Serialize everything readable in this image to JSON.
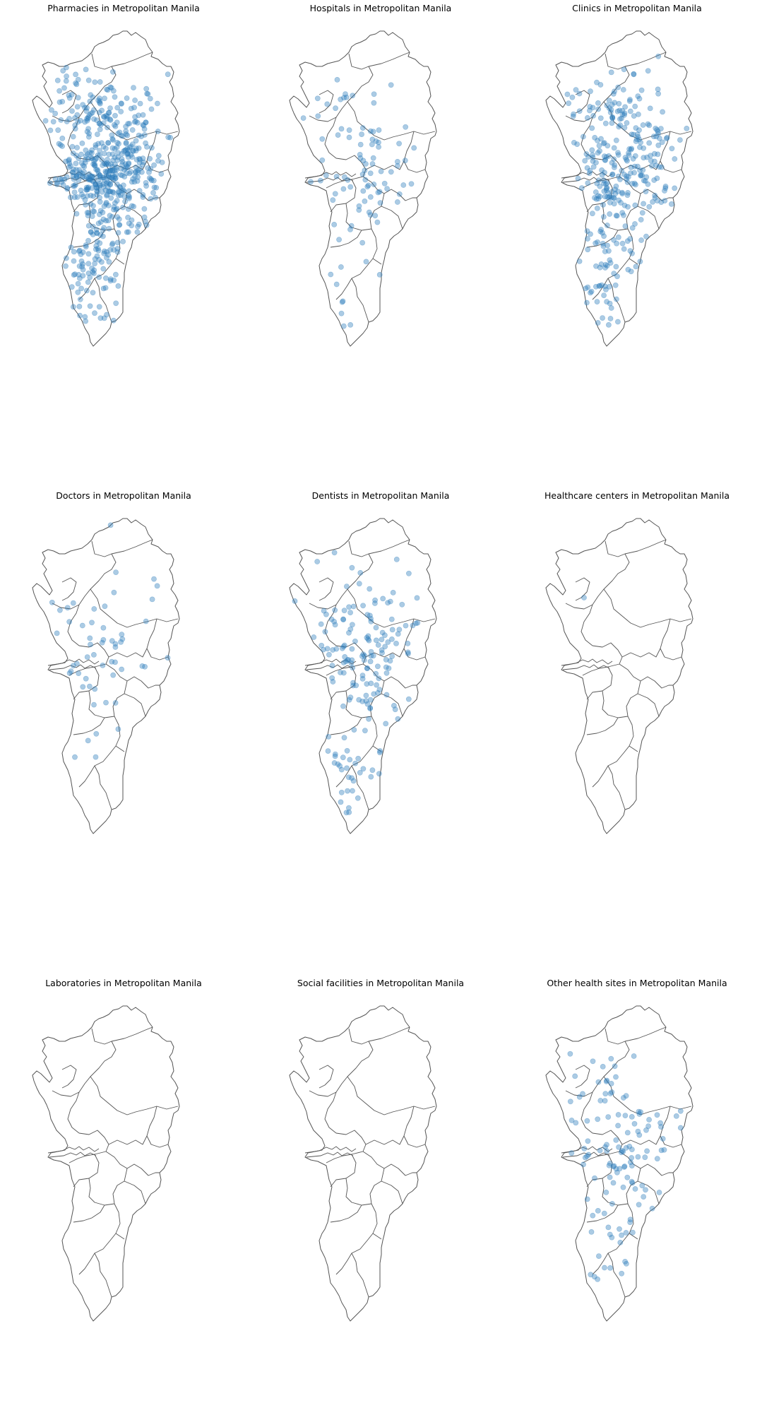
{
  "figure": {
    "marker_color": "#2e7ebc",
    "marker_opacity": 0.4,
    "boundary_color": "#555555"
  },
  "panels": [
    {
      "title": "Pharmacies in Metropolitan Manila",
      "site_count": 600,
      "density": "very-high"
    },
    {
      "title": "Hospitals in Metropolitan Manila",
      "site_count": 95,
      "density": "low"
    },
    {
      "title": "Clinics in Metropolitan Manila",
      "site_count": 330,
      "density": "high"
    },
    {
      "title": "Doctors in Metropolitan Manila",
      "site_count": 55,
      "density": "low"
    },
    {
      "title": "Dentists in Metropolitan Manila",
      "site_count": 175,
      "density": "medium"
    },
    {
      "title": "Healthcare centers in Metropolitan Manila",
      "site_count": 1,
      "density": "minimal"
    },
    {
      "title": "Laboratories in Metropolitan Manila",
      "site_count": 0,
      "density": "none"
    },
    {
      "title": "Social facilities in Metropolitan Manila",
      "site_count": 0,
      "density": "none"
    },
    {
      "title": "Other health sites in Metropolitan Manila",
      "site_count": 125,
      "density": "medium"
    }
  ]
}
